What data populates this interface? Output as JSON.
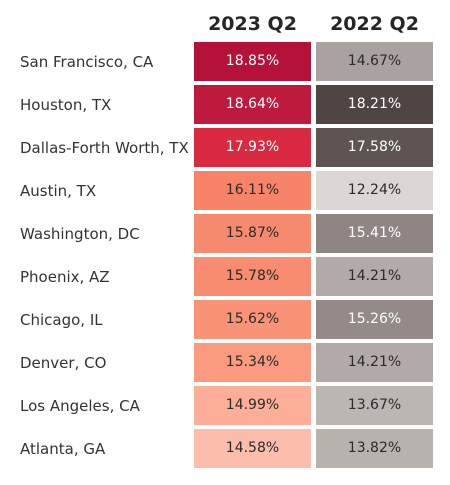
{
  "chart_data": {
    "type": "heatmap",
    "columns": [
      "2023 Q2",
      "2022 Q2"
    ],
    "rows": [
      {
        "label": "San Francisco, CA",
        "values": [
          "18.85%",
          "14.67%"
        ],
        "colors": [
          "#b5123a",
          "#aaa2a0"
        ]
      },
      {
        "label": "Houston, TX",
        "values": [
          "18.64%",
          "18.21%"
        ],
        "colors": [
          "#bd1a3e",
          "#4f4543"
        ]
      },
      {
        "label": "Dallas-Forth Worth, TX",
        "values": [
          "17.93%",
          "17.58%"
        ],
        "colors": [
          "#d92a41",
          "#5e5553"
        ]
      },
      {
        "label": "Austin, TX",
        "values": [
          "16.11%",
          "12.24%"
        ],
        "colors": [
          "#f78469",
          "#dcd7d4"
        ]
      },
      {
        "label": "Washington, DC",
        "values": [
          "15.87%",
          "15.41%"
        ],
        "colors": [
          "#f68a6f",
          "#8f8684"
        ]
      },
      {
        "label": "Phoenix, AZ",
        "values": [
          "15.78%",
          "14.21%"
        ],
        "colors": [
          "#f78c71",
          "#b1aaa8"
        ]
      },
      {
        "label": "Chicago, IL",
        "values": [
          "15.62%",
          "15.26%"
        ],
        "colors": [
          "#f99377",
          "#948b89"
        ]
      },
      {
        "label": "Denver, CO",
        "values": [
          "15.34%",
          "14.21%"
        ],
        "colors": [
          "#fa9b80",
          "#b1aaa8"
        ]
      },
      {
        "label": "Los Angeles, CA",
        "values": [
          "14.99%",
          "13.67%"
        ],
        "colors": [
          "#fcae98",
          "#bcb6b3"
        ]
      },
      {
        "label": "Atlanta, GA",
        "values": [
          "14.58%",
          "13.82%"
        ],
        "colors": [
          "#fdbdad",
          "#b8b2af"
        ]
      }
    ],
    "dark_text_color": "#2b2b2b",
    "light_text_color": "#ffffff"
  }
}
